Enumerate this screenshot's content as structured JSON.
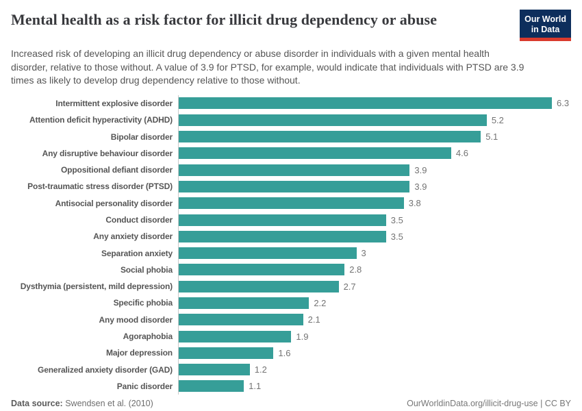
{
  "header": {
    "title": "Mental health as a risk factor for illicit drug dependency or abuse",
    "subtitle": "Increased risk of developing an illicit drug dependency or abuse disorder in individuals with a given mental health disorder, relative to those without. A value of 3.9 for PTSD, for example, would indicate that individuals with PTSD are 3.9 times as likely to develop drug dependency relative to those without.",
    "logo": {
      "line1": "Our World",
      "line2": "in Data",
      "background_color": "#0d2e5c",
      "accent_color": "#d93a2d"
    }
  },
  "chart_data": {
    "type": "bar",
    "orientation": "horizontal",
    "title": "Mental health as a risk factor for illicit drug dependency or abuse",
    "xlabel": "",
    "ylabel": "",
    "grid": false,
    "xlim": [
      0,
      6.3
    ],
    "bar_color": "#369e98",
    "categories": [
      "Intermittent explosive disorder",
      "Attention deficit hyperactivity (ADHD)",
      "Bipolar disorder",
      "Any disruptive behaviour disorder",
      "Oppositional defiant disorder",
      "Post-traumatic stress disorder (PTSD)",
      "Antisocial personality disorder",
      "Conduct disorder",
      "Any anxiety disorder",
      "Separation anxiety",
      "Social phobia",
      "Dysthymia (persistent, mild depression)",
      "Specific phobia",
      "Any mood disorder",
      "Agoraphobia",
      "Major depression",
      "Generalized anxiety disorder (GAD)",
      "Panic disorder"
    ],
    "values": [
      6.3,
      5.2,
      5.1,
      4.6,
      3.9,
      3.9,
      3.8,
      3.5,
      3.5,
      3,
      2.8,
      2.7,
      2.2,
      2.1,
      1.9,
      1.6,
      1.2,
      1.1
    ],
    "value_labels": [
      "6.3",
      "5.2",
      "5.1",
      "4.6",
      "3.9",
      "3.9",
      "3.8",
      "3.5",
      "3.5",
      "3",
      "2.8",
      "2.7",
      "2.2",
      "2.1",
      "1.9",
      "1.6",
      "1.2",
      "1.1"
    ]
  },
  "footer": {
    "source_label": "Data source:",
    "source_value": " Swendsen et al. (2010)",
    "credit": "OurWorldinData.org/illicit-drug-use | CC BY"
  }
}
